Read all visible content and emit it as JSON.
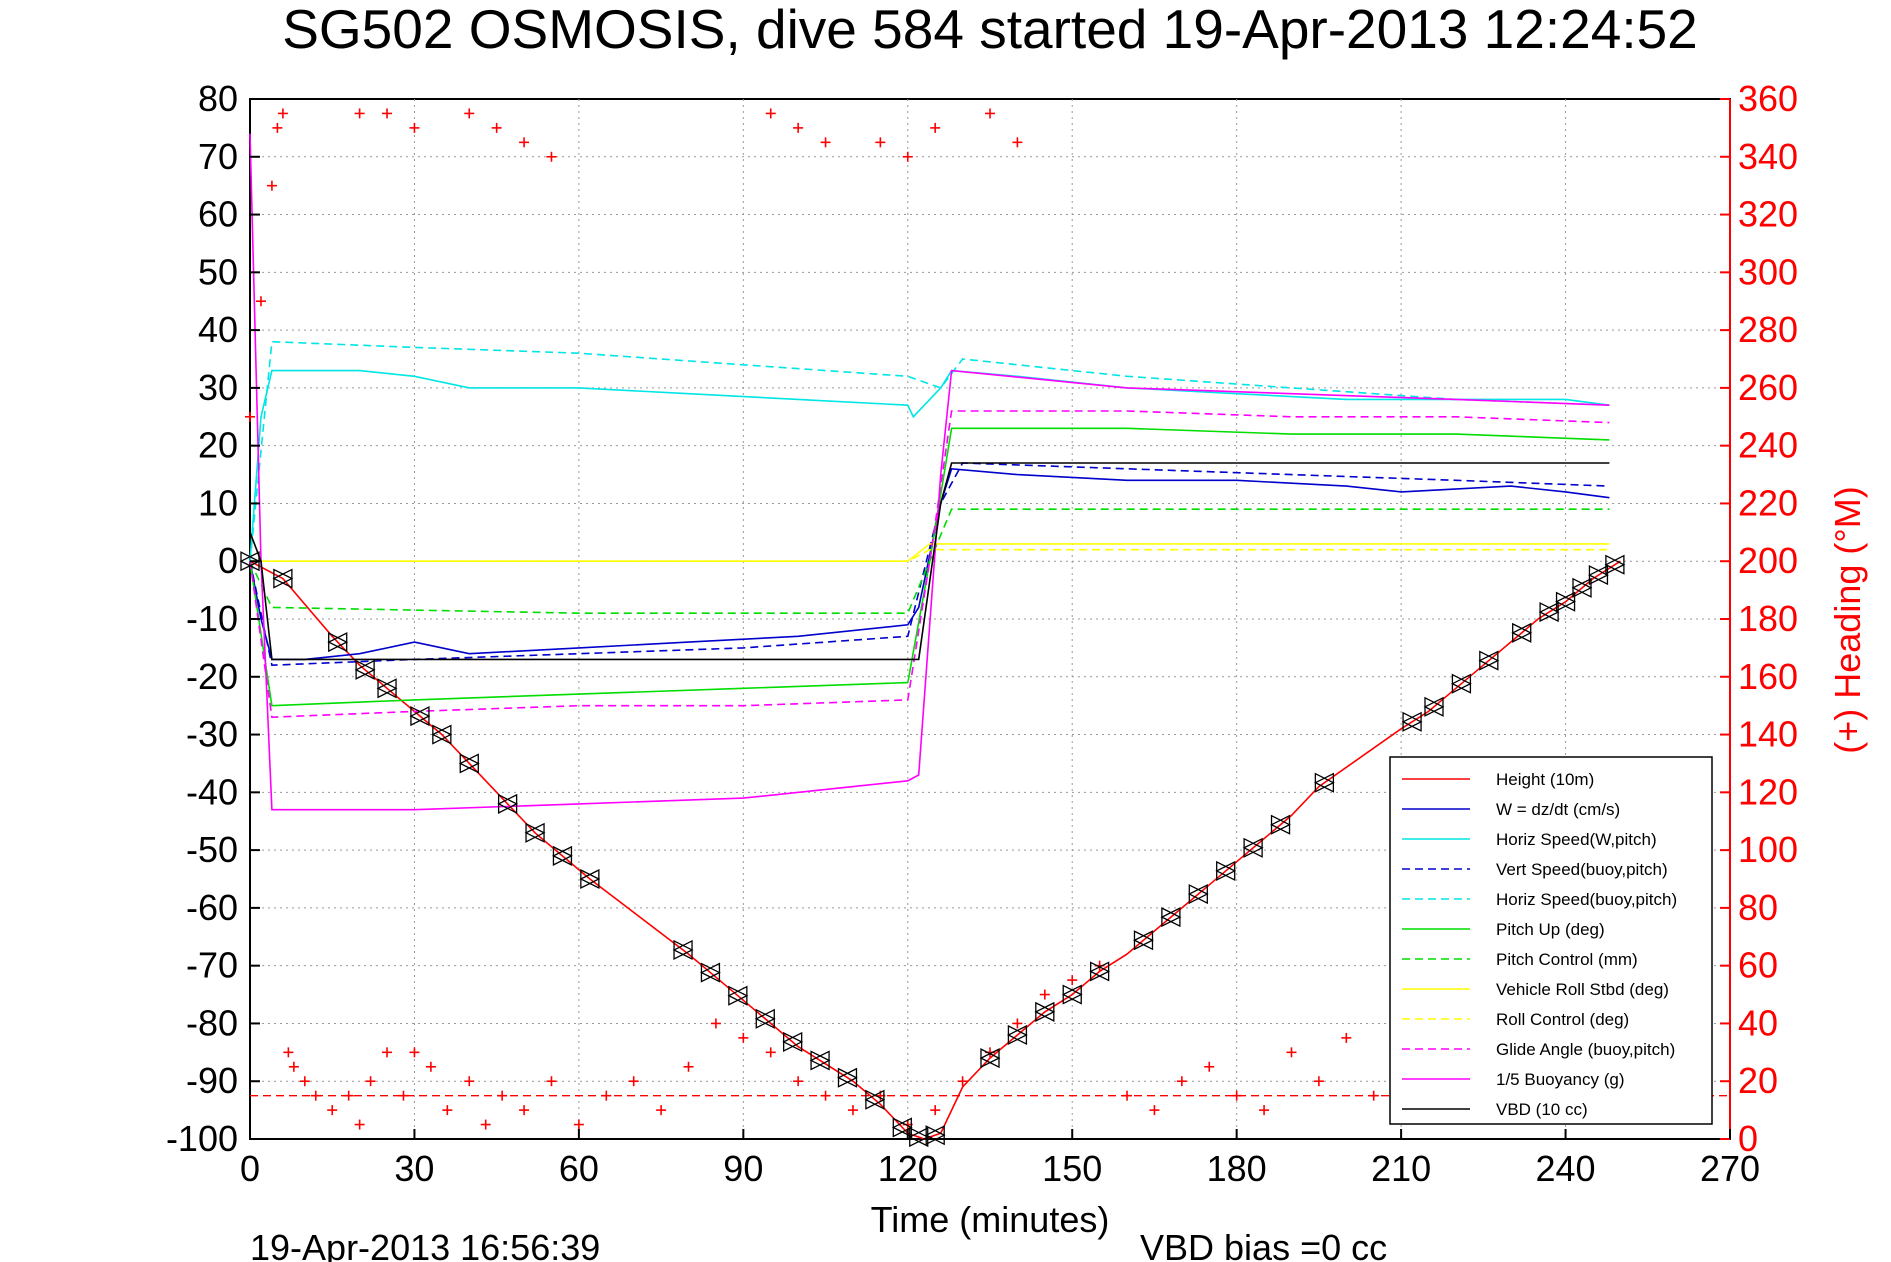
{
  "title": "SG502 OSMOSIS, dive 584 started 19-Apr-2013 12:24:52",
  "footer": {
    "timestamp": "19-Apr-2013 16:56:39",
    "vbd_bias": "VBD bias =0 cc"
  },
  "colors": {
    "red": "#ff0000",
    "blue": "#0000cc",
    "cyan": "#00e5e5",
    "green": "#00dd00",
    "yellow": "#ffff00",
    "magenta": "#ff00ff",
    "black": "#000000"
  },
  "chart_data": {
    "type": "line",
    "xlabel": "Time (minutes)",
    "ylabel_right": "(+) Heading (°M)",
    "xlim": [
      0,
      270
    ],
    "ylim_left": [
      -100,
      80
    ],
    "ylim_right": [
      0,
      360
    ],
    "grid": true,
    "legend_position": "bottom-right",
    "x_ticks": [
      "0",
      "30",
      "60",
      "90",
      "120",
      "150",
      "180",
      "210",
      "240",
      "270"
    ],
    "y_left_ticks": [
      "80",
      "70",
      "60",
      "50",
      "40",
      "30",
      "20",
      "10",
      "0",
      "-10",
      "-20",
      "-30",
      "-40",
      "-50",
      "-60",
      "-70",
      "-80",
      "-90",
      "-100"
    ],
    "y_right_ticks": [
      "360",
      "340",
      "320",
      "300",
      "280",
      "260",
      "240",
      "220",
      "200",
      "180",
      "160",
      "140",
      "120",
      "100",
      "80",
      "60",
      "40",
      "20",
      "0"
    ],
    "series": [
      {
        "name": "Height (10m)",
        "color": "#ff0000",
        "style": "solid",
        "x": [
          0,
          6,
          15,
          20,
          25,
          30,
          35,
          40,
          47,
          52,
          57,
          62,
          80,
          85,
          90,
          95,
          100,
          105,
          110,
          115,
          120,
          123,
          126,
          130,
          135,
          140,
          145,
          150,
          155,
          160,
          165,
          170,
          175,
          180,
          185,
          190,
          195,
          210,
          215,
          220,
          225,
          230,
          235,
          240,
          245,
          250
        ],
        "y": [
          0,
          -3,
          -13,
          -18,
          -22,
          -26,
          -30,
          -35,
          -42,
          -47,
          -51,
          -55,
          -68,
          -72,
          -76,
          -80,
          -84,
          -87,
          -90,
          -94,
          -99,
          -100,
          -99,
          -91,
          -86,
          -82,
          -78,
          -75,
          -71,
          -68,
          -64,
          -60,
          -56,
          -52,
          -48,
          -44,
          -39,
          -29,
          -26,
          -22,
          -18,
          -14,
          -10,
          -7,
          -3,
          0
        ]
      },
      {
        "name": "W = dz/dt (cm/s)",
        "color": "#0000cc",
        "style": "solid",
        "x": [
          0,
          2,
          4,
          10,
          20,
          30,
          40,
          60,
          80,
          100,
          120,
          122,
          126,
          128,
          140,
          160,
          180,
          200,
          210,
          230,
          240,
          248
        ],
        "y": [
          0,
          -10,
          -17,
          -17,
          -16,
          -14,
          -16,
          -15,
          -14,
          -13,
          -11,
          -8,
          10,
          16,
          15,
          14,
          14,
          13,
          12,
          13,
          12,
          11
        ]
      },
      {
        "name": "Horiz Speed(W,pitch)",
        "color": "#00e5e5",
        "style": "solid",
        "x": [
          0,
          2,
          4,
          10,
          20,
          30,
          40,
          60,
          80,
          100,
          120,
          121,
          126,
          128,
          140,
          160,
          180,
          200,
          220,
          240,
          248
        ],
        "y": [
          0,
          25,
          33,
          33,
          33,
          32,
          30,
          30,
          29,
          28,
          27,
          25,
          30,
          33,
          32,
          30,
          29,
          28,
          28,
          28,
          27
        ]
      },
      {
        "name": "Vert Speed(buoy,pitch)",
        "color": "#0000cc",
        "style": "dashed",
        "x": [
          0,
          4,
          30,
          60,
          90,
          120,
          126,
          130,
          160,
          190,
          220,
          248
        ],
        "y": [
          0,
          -18,
          -17,
          -16,
          -15,
          -13,
          10,
          17,
          16,
          15,
          14,
          13
        ]
      },
      {
        "name": "Horiz Speed(buoy,pitch)",
        "color": "#00e5e5",
        "style": "dashed",
        "x": [
          0,
          4,
          30,
          60,
          90,
          120,
          126,
          130,
          160,
          190,
          220,
          248
        ],
        "y": [
          0,
          38,
          37,
          36,
          34,
          32,
          30,
          35,
          32,
          30,
          28,
          27
        ]
      },
      {
        "name": "Pitch Up (deg)",
        "color": "#00dd00",
        "style": "solid",
        "x": [
          0,
          4,
          30,
          60,
          90,
          120,
          124,
          128,
          160,
          190,
          220,
          248
        ],
        "y": [
          0,
          -25,
          -24,
          -23,
          -22,
          -21,
          0,
          23,
          23,
          22,
          22,
          21
        ]
      },
      {
        "name": "Pitch Control (mm)",
        "color": "#00dd00",
        "style": "dashed",
        "x": [
          0,
          4,
          60,
          120,
          124,
          128,
          190,
          248
        ],
        "y": [
          0,
          -8,
          -9,
          -9,
          0,
          9,
          9,
          9
        ]
      },
      {
        "name": "Vehicle Roll Stbd (deg)",
        "color": "#ffff00",
        "style": "solid",
        "x": [
          0,
          4,
          60,
          120,
          124,
          130,
          190,
          248
        ],
        "y": [
          0,
          0,
          0,
          0,
          3,
          3,
          3,
          3
        ]
      },
      {
        "name": "Roll Control (deg)",
        "color": "#ffff00",
        "style": "dashed",
        "x": [
          0,
          4,
          60,
          120,
          124,
          130,
          190,
          248
        ],
        "y": [
          0,
          0,
          0,
          0,
          2,
          2,
          2,
          2
        ]
      },
      {
        "name": "Glide Angle (buoy,pitch)",
        "color": "#ff00ff",
        "style": "dashed",
        "x": [
          0,
          4,
          30,
          60,
          90,
          120,
          124,
          128,
          160,
          190,
          220,
          248
        ],
        "y": [
          0,
          -27,
          -26,
          -25,
          -25,
          -24,
          0,
          26,
          26,
          25,
          25,
          24
        ]
      },
      {
        "name": "1/5 Buoyancy (g)",
        "color": "#ff00ff",
        "style": "solid",
        "x": [
          0,
          2,
          4,
          30,
          60,
          90,
          110,
          120,
          122,
          126,
          128,
          160,
          190,
          220,
          248
        ],
        "y": [
          74,
          0,
          -43,
          -43,
          -42,
          -41,
          -39,
          -38,
          -37,
          15,
          33,
          30,
          29,
          28,
          27
        ]
      },
      {
        "name": "VBD (10 cc)",
        "color": "#000000",
        "style": "solid",
        "x": [
          0,
          2,
          4,
          30,
          60,
          90,
          120,
          122,
          126,
          128,
          160,
          190,
          220,
          248
        ],
        "y": [
          5,
          0,
          -17,
          -17,
          -17,
          -17,
          -17,
          -17,
          10,
          17,
          17,
          17,
          17,
          17
        ]
      }
    ],
    "heading_series": {
      "axis": "right",
      "color": "#ff0000",
      "marker": "+",
      "x": [
        0,
        2,
        4,
        5,
        6,
        7,
        8,
        10,
        12,
        15,
        18,
        20,
        22,
        25,
        28,
        30,
        33,
        36,
        40,
        43,
        46,
        50,
        55,
        60,
        65,
        70,
        75,
        80,
        85,
        90,
        95,
        100,
        105,
        110,
        115,
        120,
        125,
        130,
        135,
        140,
        145,
        150,
        155,
        160,
        165,
        170,
        175,
        180,
        185,
        190,
        195,
        200,
        205,
        210,
        215,
        220,
        225,
        230,
        235,
        240,
        245
      ],
      "y": [
        250,
        290,
        330,
        350,
        355,
        30,
        25,
        20,
        15,
        10,
        15,
        5,
        20,
        30,
        15,
        30,
        25,
        10,
        20,
        5,
        15,
        10,
        20,
        5,
        15,
        20,
        10,
        25,
        40,
        35,
        30,
        20,
        15,
        10,
        15,
        5,
        10,
        20,
        30,
        40,
        50,
        55,
        60,
        15,
        10,
        20,
        25,
        15,
        10,
        30,
        20,
        35,
        15,
        25,
        20,
        30,
        45,
        35,
        25,
        30,
        20
      ]
    },
    "heading_marker_series": {
      "axis": "right",
      "x": [
        20,
        25,
        30,
        40,
        45,
        50,
        55,
        95,
        100,
        105,
        115,
        120,
        125,
        135,
        140
      ],
      "y": [
        355,
        355,
        350,
        355,
        350,
        345,
        340,
        355,
        350,
        345,
        345,
        340,
        350,
        355,
        345
      ]
    },
    "heading_reference": {
      "axis": "right",
      "value": 15
    },
    "triangle_markers_x": [
      0,
      6,
      16,
      21,
      25,
      31,
      35,
      40,
      47,
      52,
      57,
      62,
      79,
      84,
      89,
      94,
      99,
      104,
      109,
      114,
      119,
      122,
      125,
      135,
      140,
      145,
      150,
      155,
      163,
      168,
      173,
      178,
      183,
      188,
      196,
      212,
      216,
      221,
      226,
      232,
      237,
      240,
      243,
      246,
      249
    ]
  }
}
